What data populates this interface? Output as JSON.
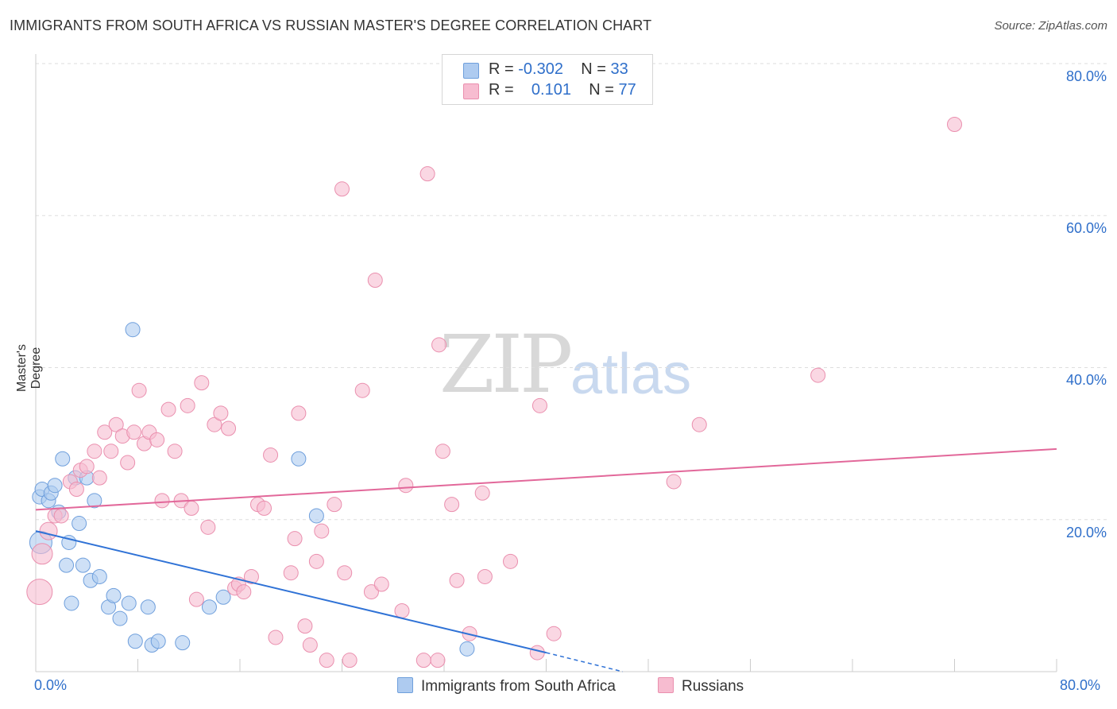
{
  "title": "IMMIGRANTS FROM SOUTH AFRICA VS RUSSIAN MASTER'S DEGREE CORRELATION CHART",
  "source": "Source: ZipAtlas.com",
  "watermark": {
    "zip": "ZIP",
    "atlas": "atlas"
  },
  "legend": {
    "rows": [
      {
        "r_label": "R =",
        "r_value": "-0.302",
        "n_label": "N =",
        "n_value": "33"
      },
      {
        "r_label": "R =",
        "r_value": "0.101",
        "n_label": "N =",
        "n_value": "77"
      }
    ]
  },
  "bottom_legend": [
    "Immigrants from South Africa",
    "Russians"
  ],
  "colors": {
    "blue_fill": "#aecbf0",
    "blue_stroke": "#6f9fdc",
    "blue_line": "#2f72d6",
    "pink_fill": "#f7bcd0",
    "pink_stroke": "#ea8fae",
    "pink_line": "#e2689a",
    "axis_text": "#2f6fca",
    "grid": "#dddddd"
  },
  "chart_data": {
    "type": "scatter",
    "title": "IMMIGRANTS FROM SOUTH AFRICA VS RUSSIAN MASTER'S DEGREE CORRELATION CHART",
    "xlabel": "",
    "ylabel": "Master's Degree",
    "xlim": [
      0,
      80
    ],
    "ylim": [
      0,
      80
    ],
    "x_tick_labels": [
      "0.0%",
      "80.0%"
    ],
    "y_tick_labels": [
      "20.0%",
      "40.0%",
      "60.0%",
      "80.0%"
    ],
    "y_ticks": [
      20,
      40,
      60,
      80
    ],
    "grid": "horizontal dashed",
    "legend_placement": "top-center",
    "series": [
      {
        "name": "Immigrants from South Africa",
        "color": "blue",
        "points": [
          [
            0.4,
            17.0,
            14
          ],
          [
            0.3,
            23.0,
            9
          ],
          [
            0.5,
            24.0,
            9
          ],
          [
            1.0,
            22.5,
            9
          ],
          [
            1.2,
            23.5,
            9
          ],
          [
            1.5,
            24.5,
            9
          ],
          [
            1.8,
            21.0,
            9
          ],
          [
            2.1,
            28.0,
            9
          ],
          [
            2.4,
            14.0,
            9
          ],
          [
            2.6,
            17.0,
            9
          ],
          [
            2.8,
            9.0,
            9
          ],
          [
            3.1,
            25.5,
            9
          ],
          [
            3.4,
            19.5,
            9
          ],
          [
            3.7,
            14.0,
            9
          ],
          [
            4.0,
            25.5,
            9
          ],
          [
            4.3,
            12.0,
            9
          ],
          [
            4.6,
            22.5,
            9
          ],
          [
            5.0,
            12.5,
            9
          ],
          [
            5.7,
            8.5,
            9
          ],
          [
            6.1,
            10.0,
            9
          ],
          [
            6.6,
            7.0,
            9
          ],
          [
            7.3,
            9.0,
            9
          ],
          [
            7.6,
            45.0,
            9
          ],
          [
            7.8,
            4.0,
            9
          ],
          [
            8.8,
            8.5,
            9
          ],
          [
            9.1,
            3.5,
            9
          ],
          [
            9.6,
            4.0,
            9
          ],
          [
            11.5,
            3.8,
            9
          ],
          [
            13.6,
            8.5,
            9
          ],
          [
            14.7,
            9.8,
            9
          ],
          [
            20.6,
            28.0,
            9
          ],
          [
            22.0,
            20.5,
            9
          ],
          [
            33.8,
            3.0,
            9
          ]
        ],
        "trend": {
          "x0": 0,
          "y0": 18.5,
          "x1": 40,
          "y1": 2.5,
          "dash_to_x": 46,
          "dash_to_y": 0
        }
      },
      {
        "name": "Russians",
        "color": "pink",
        "points": [
          [
            0.3,
            10.5,
            16
          ],
          [
            0.5,
            15.5,
            13
          ],
          [
            1.0,
            18.5,
            11
          ],
          [
            1.5,
            20.5,
            9
          ],
          [
            2.0,
            20.5,
            9
          ],
          [
            2.7,
            25.0,
            9
          ],
          [
            3.2,
            24.0,
            9
          ],
          [
            3.5,
            26.5,
            9
          ],
          [
            4.0,
            27.0,
            9
          ],
          [
            4.6,
            29.0,
            9
          ],
          [
            5.0,
            25.5,
            9
          ],
          [
            5.4,
            31.5,
            9
          ],
          [
            5.9,
            29.0,
            9
          ],
          [
            6.3,
            32.5,
            9
          ],
          [
            6.8,
            31.0,
            9
          ],
          [
            7.2,
            27.5,
            9
          ],
          [
            7.7,
            31.5,
            9
          ],
          [
            8.1,
            37.0,
            9
          ],
          [
            8.5,
            30.0,
            9
          ],
          [
            8.9,
            31.5,
            9
          ],
          [
            9.5,
            30.5,
            9
          ],
          [
            9.9,
            22.5,
            9
          ],
          [
            10.4,
            34.5,
            9
          ],
          [
            10.9,
            29.0,
            9
          ],
          [
            11.4,
            22.5,
            9
          ],
          [
            11.9,
            35.0,
            9
          ],
          [
            12.2,
            21.5,
            9
          ],
          [
            12.6,
            9.5,
            9
          ],
          [
            13.0,
            38.0,
            9
          ],
          [
            13.5,
            19.0,
            9
          ],
          [
            14.0,
            32.5,
            9
          ],
          [
            14.5,
            34.0,
            9
          ],
          [
            15.1,
            32.0,
            9
          ],
          [
            15.6,
            11.0,
            9
          ],
          [
            15.9,
            11.5,
            9
          ],
          [
            16.3,
            10.5,
            9
          ],
          [
            16.9,
            12.5,
            9
          ],
          [
            17.4,
            22.0,
            9
          ],
          [
            17.9,
            21.5,
            9
          ],
          [
            18.4,
            28.5,
            9
          ],
          [
            18.8,
            4.5,
            9
          ],
          [
            20.0,
            13.0,
            9
          ],
          [
            20.3,
            17.5,
            9
          ],
          [
            20.6,
            34.0,
            9
          ],
          [
            21.1,
            6.0,
            9
          ],
          [
            21.5,
            3.5,
            9
          ],
          [
            22.0,
            14.5,
            9
          ],
          [
            22.4,
            18.5,
            9
          ],
          [
            22.8,
            1.5,
            9
          ],
          [
            23.4,
            22.0,
            9
          ],
          [
            24.0,
            63.5,
            9
          ],
          [
            24.2,
            13.0,
            9
          ],
          [
            24.6,
            1.5,
            9
          ],
          [
            25.6,
            37.0,
            9
          ],
          [
            26.3,
            10.5,
            9
          ],
          [
            26.6,
            51.5,
            9
          ],
          [
            27.1,
            11.5,
            9
          ],
          [
            28.7,
            8.0,
            9
          ],
          [
            29.0,
            24.5,
            9
          ],
          [
            30.4,
            1.5,
            9
          ],
          [
            30.7,
            65.5,
            9
          ],
          [
            31.5,
            1.5,
            9
          ],
          [
            31.6,
            43.0,
            9
          ],
          [
            31.9,
            29.0,
            9
          ],
          [
            32.6,
            22.0,
            9
          ],
          [
            33.0,
            12.0,
            9
          ],
          [
            34.0,
            5.0,
            9
          ],
          [
            35.0,
            23.5,
            9
          ],
          [
            35.2,
            12.5,
            9
          ],
          [
            37.2,
            14.5,
            9
          ],
          [
            39.3,
            2.5,
            9
          ],
          [
            39.5,
            35.0,
            9
          ],
          [
            40.6,
            5.0,
            9
          ],
          [
            50.0,
            25.0,
            9
          ],
          [
            52.0,
            32.5,
            9
          ],
          [
            61.3,
            39.0,
            9
          ],
          [
            72.0,
            72.0,
            9
          ]
        ],
        "trend": {
          "x0": 0,
          "y0": 21.3,
          "x1": 80,
          "y1": 29.3
        }
      }
    ]
  }
}
